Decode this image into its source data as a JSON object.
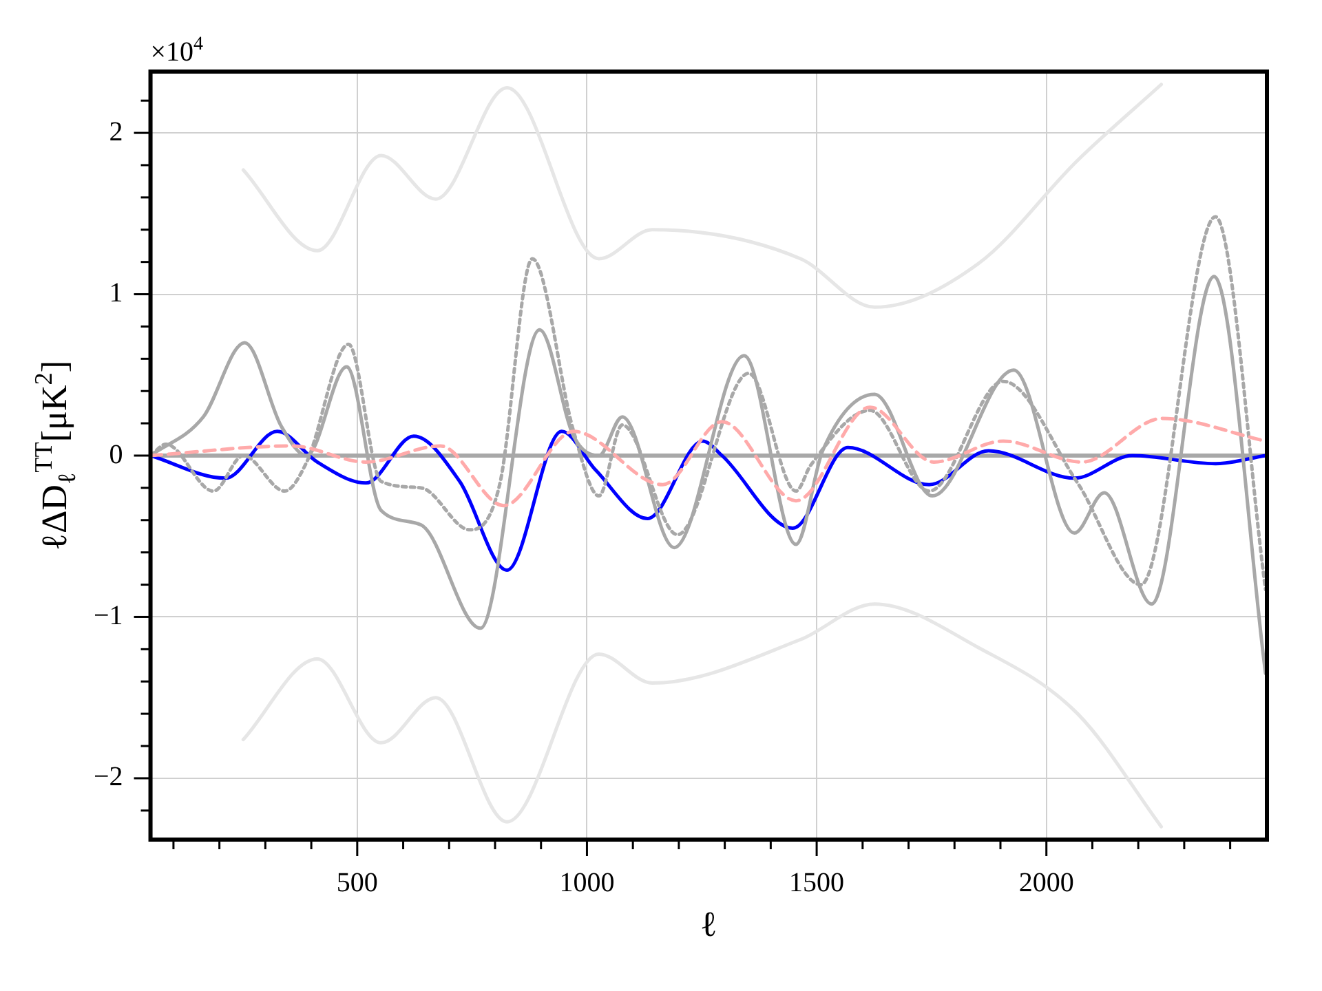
{
  "chart_data": {
    "type": "line",
    "xlabel": "ℓ",
    "ylabel": "ℓΔD$_{ℓ}$$^{TT}$[μK$^{2}$]",
    "annotations": [
      "×10$^{4}$"
    ],
    "xlim": [
      50,
      2480
    ],
    "ylim": [
      -2.38,
      2.38
    ],
    "xticks": [
      {
        "value": 100,
        "label": null
      },
      {
        "value": 200,
        "label": null
      },
      {
        "value": 300,
        "label": null
      },
      {
        "value": 400,
        "label": null
      },
      500,
      {
        "value": 600,
        "label": null
      },
      {
        "value": 700,
        "label": null
      },
      {
        "value": 800,
        "label": null
      },
      {
        "value": 900,
        "label": null
      },
      1000,
      {
        "value": 1100,
        "label": null
      },
      {
        "value": 1200,
        "label": null
      },
      {
        "value": 1300,
        "label": null
      },
      {
        "value": 1400,
        "label": null
      },
      1500,
      {
        "value": 1600,
        "label": null
      },
      {
        "value": 1700,
        "label": null
      },
      {
        "value": 1800,
        "label": null
      },
      {
        "value": 1900,
        "label": null
      },
      2000,
      {
        "value": 2100,
        "label": null
      },
      {
        "value": 2200,
        "label": null
      },
      {
        "value": 2300,
        "label": null
      },
      {
        "value": 2400,
        "label": null
      }
    ],
    "yticks": [
      {
        "value": -2.2,
        "label": null
      },
      {
        "value": -2,
        "label": "−2"
      },
      {
        "value": -1.8,
        "label": null
      },
      {
        "value": -1.6,
        "label": null
      },
      {
        "value": -1.4,
        "label": null
      },
      {
        "value": -1.2,
        "label": null
      },
      {
        "value": -1,
        "label": "−1"
      },
      {
        "value": -0.8,
        "label": null
      },
      {
        "value": -0.6,
        "label": null
      },
      {
        "value": -0.4,
        "label": null
      },
      {
        "value": -0.2,
        "label": null
      },
      0,
      {
        "value": 0.2,
        "label": null
      },
      {
        "value": 0.4,
        "label": null
      },
      {
        "value": 0.6,
        "label": null
      },
      {
        "value": 0.8,
        "label": null
      },
      1,
      {
        "value": 1.2,
        "label": null
      },
      {
        "value": 1.4,
        "label": null
      },
      {
        "value": 1.6,
        "label": null
      },
      {
        "value": 1.8,
        "label": null
      },
      2,
      {
        "value": 2.2,
        "label": null
      }
    ],
    "grid": true,
    "legend": false,
    "marker": "none",
    "ref_lines": [
      {
        "axis": "y",
        "value": 0,
        "color": "#a8a8a8"
      }
    ],
    "series": [
      {
        "color": "#e6e6e6",
        "line_style": "solid",
        "x": [
          252,
          413,
          552,
          671,
          826,
          1026,
          1142,
          1465,
          1626,
          1852,
          2068,
          2250
        ],
        "values": [
          1.77,
          1.27,
          1.86,
          1.59,
          2.28,
          1.22,
          1.4,
          1.22,
          0.92,
          1.19,
          1.83,
          2.3
        ]
      },
      {
        "color": "#e6e6e6",
        "line_style": "solid",
        "x": [
          252,
          413,
          552,
          671,
          826,
          1026,
          1142,
          1465,
          1626,
          1852,
          2068,
          2250
        ],
        "values": [
          -1.76,
          -1.26,
          -1.78,
          -1.5,
          -2.27,
          -1.23,
          -1.41,
          -1.14,
          -0.92,
          -1.19,
          -1.6,
          -2.3
        ]
      },
      {
        "color": "#ffaaaa",
        "line_style": "dashed",
        "x": [
          50,
          358,
          519,
          681,
          819,
          971,
          1165,
          1294,
          1455,
          1616,
          1755,
          1906,
          2077,
          2252,
          2477
        ],
        "values": [
          0,
          0.06,
          -0.04,
          0.06,
          -0.31,
          0.15,
          -0.18,
          0.21,
          -0.28,
          0.3,
          -0.04,
          0.09,
          -0.04,
          0.23,
          0.09
        ]
      },
      {
        "color": "#a8a8a8",
        "line_style": "dotted",
        "x": [
          50,
          84,
          187,
          252,
          342,
          390,
          481,
          552,
          639,
          745,
          810,
          881,
          971,
          1026,
          1077,
          1197,
          1352,
          1455,
          1487,
          1616,
          1745,
          1906,
          2068,
          2206,
          2368,
          2477
        ],
        "values": [
          0,
          0.07,
          -0.22,
          0,
          -0.22,
          -0.04,
          0.69,
          -0.16,
          -0.2,
          -0.46,
          -0.18,
          1.22,
          0.15,
          -0.25,
          0.19,
          -0.49,
          0.51,
          -0.22,
          -0.06,
          0.28,
          -0.22,
          0.46,
          -0.17,
          -0.8,
          1.48,
          -0.83
        ]
      },
      {
        "color": "#a8a8a8",
        "line_style": "solid",
        "x": [
          50,
          165,
          255,
          335,
          390,
          477,
          552,
          639,
          768,
          897,
          971,
          1026,
          1077,
          1190,
          1342,
          1455,
          1513,
          1626,
          1752,
          1929,
          2061,
          2126,
          2229,
          2365,
          2477
        ],
        "values": [
          0,
          0.24,
          0.7,
          0.18,
          0,
          0.55,
          -0.34,
          -0.43,
          -1.07,
          0.78,
          0.12,
          0,
          0.24,
          -0.57,
          0.62,
          -0.55,
          0.03,
          0.38,
          -0.25,
          0.53,
          -0.48,
          -0.23,
          -0.92,
          1.11,
          -1.35
        ]
      },
      {
        "color": "#0000ff",
        "line_style": "solid",
        "x": [
          50,
          213,
          326,
          413,
          519,
          623,
          723,
          826,
          945,
          1019,
          1132,
          1252,
          1294,
          1448,
          1568,
          1745,
          1874,
          2061,
          2187,
          2368,
          2477
        ],
        "values": [
          0,
          -0.14,
          0.15,
          -0.04,
          -0.17,
          0.12,
          -0.16,
          -0.71,
          0.15,
          -0.09,
          -0.39,
          0.09,
          0,
          -0.45,
          0.05,
          -0.18,
          0.03,
          -0.14,
          0,
          -0.05,
          0
        ]
      }
    ]
  }
}
